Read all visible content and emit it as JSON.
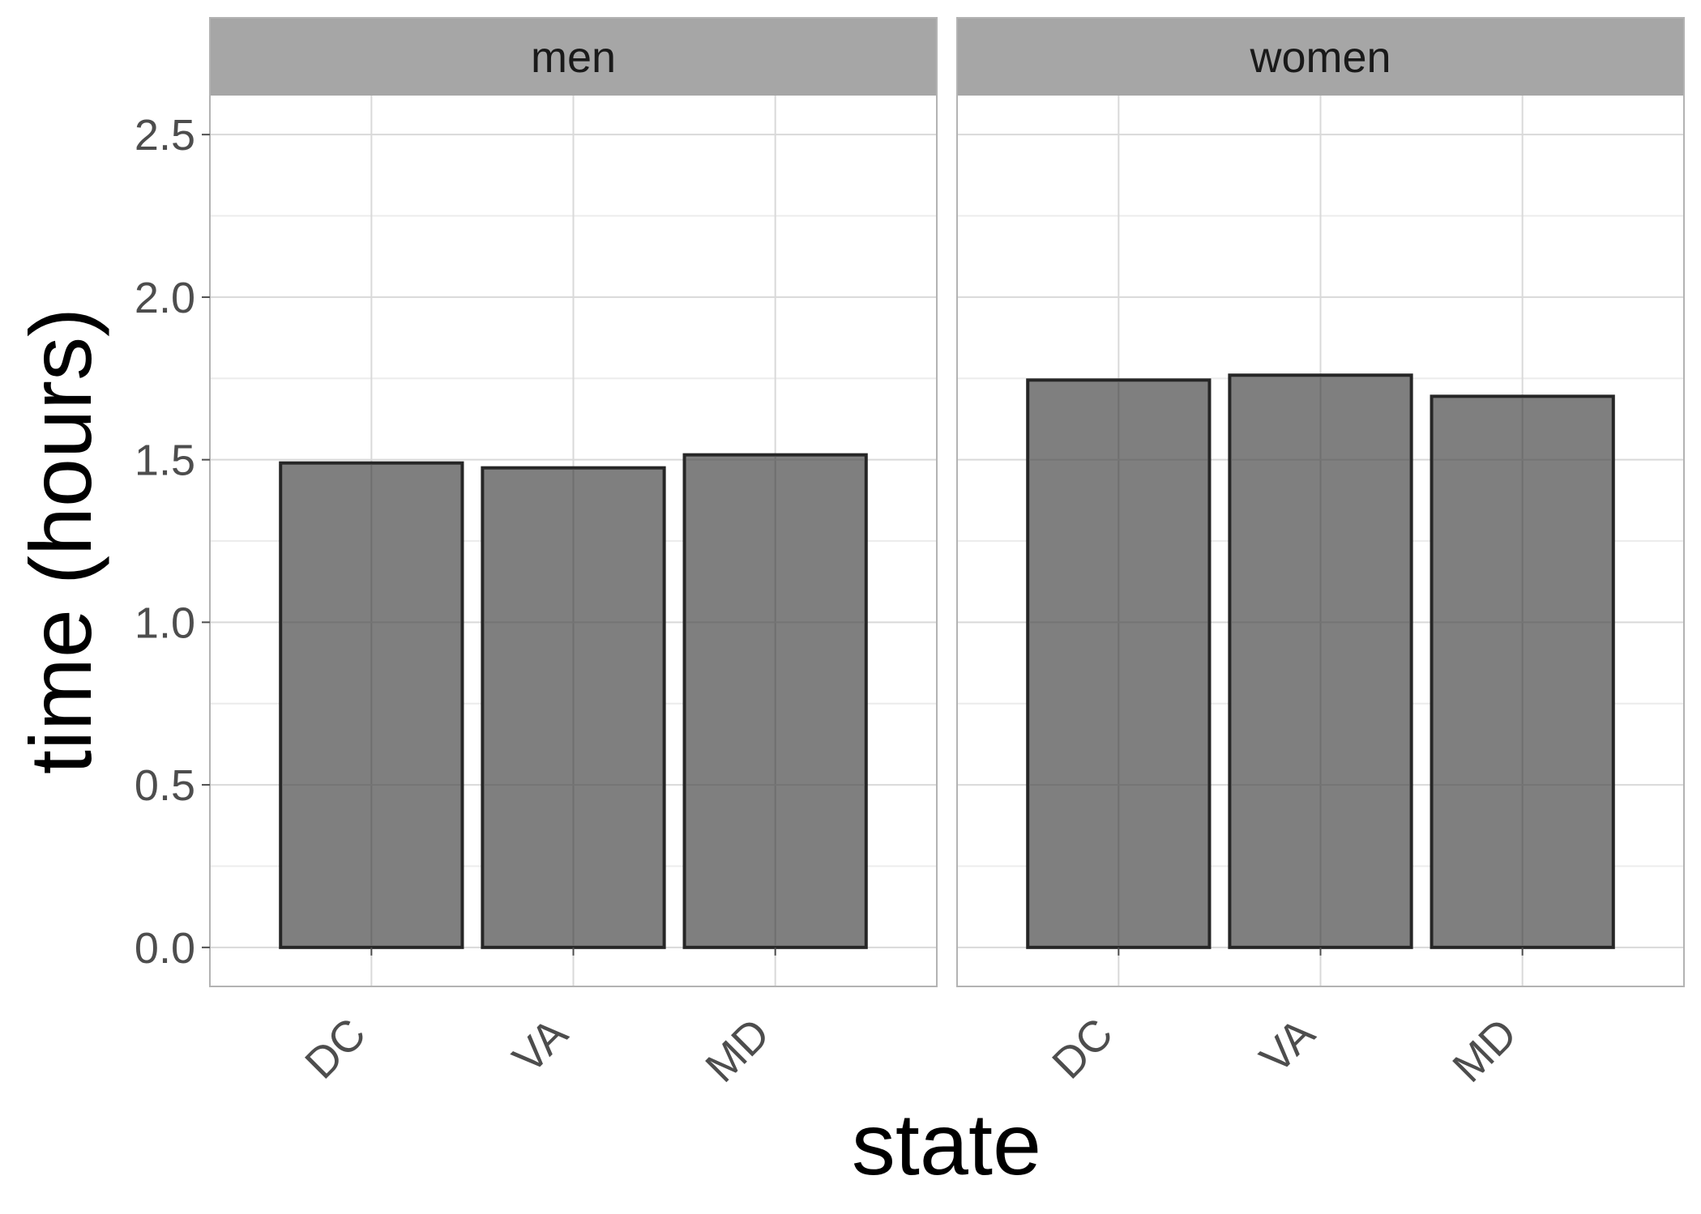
{
  "chart_data": {
    "type": "bar",
    "facet_by": "sex",
    "facets": [
      {
        "label": "men",
        "categories": [
          "DC",
          "VA",
          "MD"
        ],
        "values": [
          1.49,
          1.475,
          1.515
        ]
      },
      {
        "label": "women",
        "categories": [
          "DC",
          "VA",
          "MD"
        ],
        "values": [
          1.745,
          1.76,
          1.695
        ]
      }
    ],
    "xlabel": "state",
    "ylabel": "time (hours)",
    "ylim": [
      -0.12,
      2.62
    ],
    "yticks": [
      "0.0",
      "0.5",
      "1.0",
      "1.5",
      "2.0",
      "2.5"
    ],
    "ytick_values": [
      0,
      0.5,
      1.0,
      1.5,
      2.0,
      2.5
    ],
    "grid": true,
    "colors": {
      "bar_fill": "#7f7f7f",
      "bar_outline": "#262626",
      "strip_fill": "#a6a6a6",
      "grid_major": "#d9d9d9",
      "grid_minor": "#ececec",
      "panel_border": "#b3b3b3"
    }
  }
}
